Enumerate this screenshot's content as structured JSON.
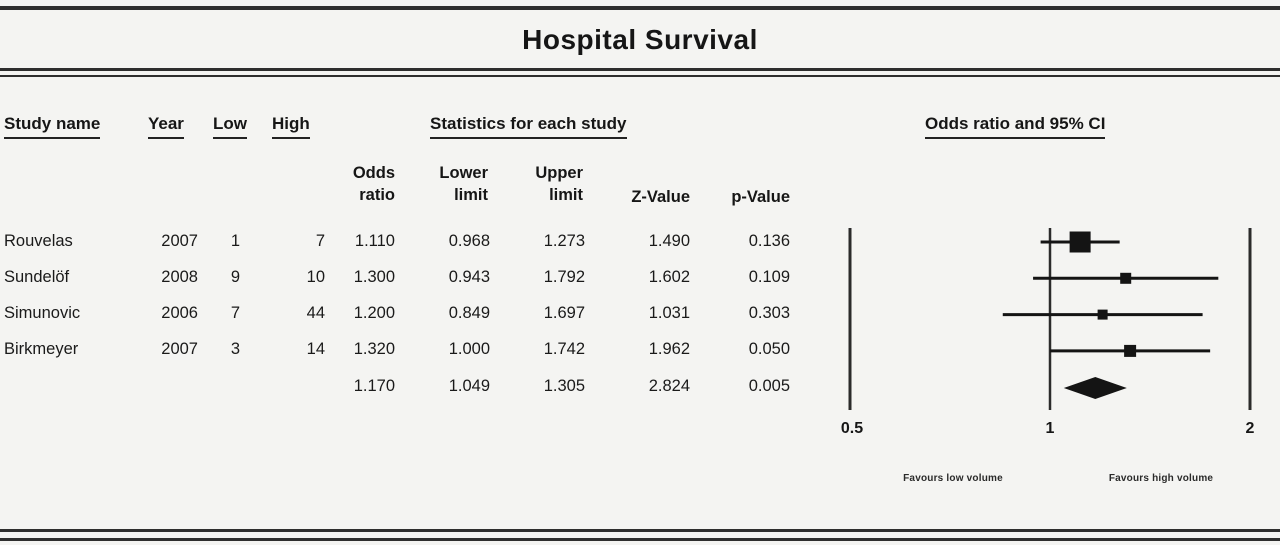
{
  "title": "Hospital Survival",
  "table": {
    "headers": {
      "study_name": "Study name",
      "year": "Year",
      "low": "Low",
      "high": "High",
      "stats_group": "Statistics for each study",
      "plot_group": "Odds ratio and 95% CI",
      "odds_ratio": "Odds\nratio",
      "lower_limit": "Lower\nlimit",
      "upper_limit": "Upper\nlimit",
      "z_value": "Z-Value",
      "p_value": "p-Value"
    },
    "rows": [
      {
        "study": "Rouvelas",
        "year": "2007",
        "low": "1",
        "high": "7",
        "or": "1.110",
        "ll": "0.968",
        "ul": "1.273",
        "z": "1.490",
        "p": "0.136"
      },
      {
        "study": "Sundelöf",
        "year": "2008",
        "low": "9",
        "high": "10",
        "or": "1.300",
        "ll": "0.943",
        "ul": "1.792",
        "z": "1.602",
        "p": "0.109"
      },
      {
        "study": "Simunovic",
        "year": "2006",
        "low": "7",
        "high": "44",
        "or": "1.200",
        "ll": "0.849",
        "ul": "1.697",
        "z": "1.031",
        "p": "0.303"
      },
      {
        "study": "Birkmeyer",
        "year": "2007",
        "low": "3",
        "high": "14",
        "or": "1.320",
        "ll": "1.000",
        "ul": "1.742",
        "z": "1.962",
        "p": "0.050"
      }
    ],
    "summary_row": {
      "or": "1.170",
      "ll": "1.049",
      "ul": "1.305",
      "z": "2.824",
      "p": "0.005"
    }
  },
  "chart_data": {
    "type": "forest",
    "title": "Hospital Survival",
    "x_scale": "log2",
    "xlim": [
      0.5,
      2
    ],
    "x_ticks": [
      0.5,
      1,
      2
    ],
    "x_tick_labels": [
      "0.5",
      "1",
      "2"
    ],
    "ref_line": 1,
    "footer_labels": [
      "Favours low volume",
      "Favours high volume"
    ],
    "marker_color": "#141414",
    "studies": [
      {
        "name": "Rouvelas",
        "or": 1.11,
        "lower": 0.968,
        "upper": 1.273,
        "marker_size": 21
      },
      {
        "name": "Sundelöf",
        "or": 1.3,
        "lower": 0.943,
        "upper": 1.792,
        "marker_size": 11
      },
      {
        "name": "Simunovic",
        "or": 1.2,
        "lower": 0.849,
        "upper": 1.697,
        "marker_size": 10
      },
      {
        "name": "Birkmeyer",
        "or": 1.32,
        "lower": 1.0,
        "upper": 1.742,
        "marker_size": 12
      }
    ],
    "summary": {
      "or": 1.17,
      "lower": 1.049,
      "upper": 1.305
    }
  }
}
